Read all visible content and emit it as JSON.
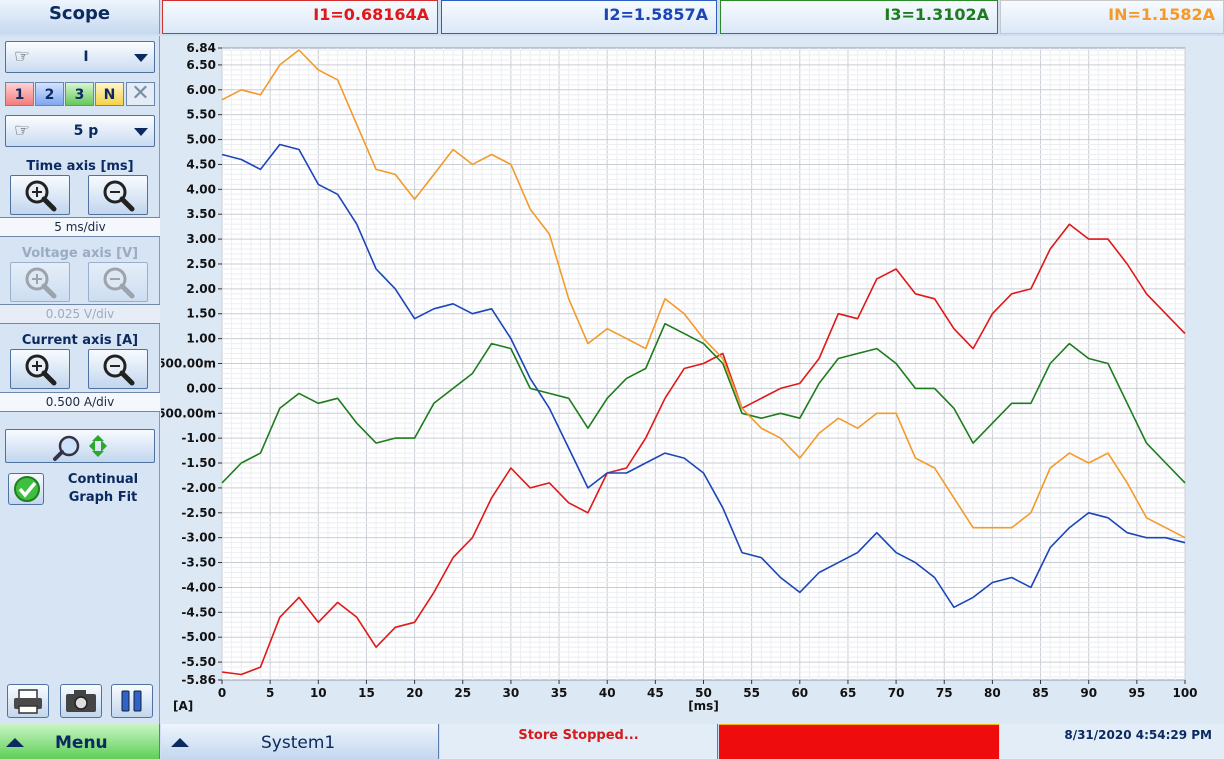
{
  "header": {
    "title": "Scope",
    "meters": [
      {
        "label": "I1=0.68164A",
        "color": "#e01818"
      },
      {
        "label": "I2=1.5857A",
        "color": "#1c46b8"
      },
      {
        "label": "I3=1.3102A",
        "color": "#1e7c1e"
      },
      {
        "label": "IN=1.1582A",
        "color": "#f39a2a"
      }
    ]
  },
  "sidebar": {
    "signal_select": "I",
    "phases": [
      "1",
      "2",
      "3",
      "N"
    ],
    "period_select": "5 p",
    "time_axis": {
      "label": "Time axis [ms]",
      "readout": "5 ms/div"
    },
    "voltage_axis": {
      "label": "Voltage axis [V]",
      "readout": "0.025 V/div"
    },
    "current_axis": {
      "label": "Current axis [A]",
      "readout": "0.500 A/div"
    },
    "continual_fit_label": "Continual Graph Fit",
    "continual_fit_checked": true,
    "icons": [
      "hand-pointer-icon",
      "zoom-in-icon",
      "zoom-out-icon",
      "auto-fit-icon",
      "checkmark-icon",
      "printer-icon",
      "camera-icon",
      "pause-icon"
    ]
  },
  "chart_data": {
    "type": "line",
    "xlabel": "[ms]",
    "ylabel": "[A]",
    "xlim": [
      0,
      100
    ],
    "ylim": [
      -5.86,
      6.84
    ],
    "x_ticks": [
      0,
      5,
      10,
      15,
      20,
      25,
      30,
      35,
      40,
      45,
      50,
      55,
      60,
      65,
      70,
      75,
      80,
      85,
      90,
      95,
      100
    ],
    "y_ticks": [
      {
        "v": 6.84,
        "t": "6.84"
      },
      {
        "v": 6.5,
        "t": "6.50"
      },
      {
        "v": 6.0,
        "t": "6.00"
      },
      {
        "v": 5.5,
        "t": "5.50"
      },
      {
        "v": 5.0,
        "t": "5.00"
      },
      {
        "v": 4.5,
        "t": "4.50"
      },
      {
        "v": 4.0,
        "t": "4.00"
      },
      {
        "v": 3.5,
        "t": "3.50"
      },
      {
        "v": 3.0,
        "t": "3.00"
      },
      {
        "v": 2.5,
        "t": "2.50"
      },
      {
        "v": 2.0,
        "t": "2.00"
      },
      {
        "v": 1.5,
        "t": "1.50"
      },
      {
        "v": 1.0,
        "t": "1.00"
      },
      {
        "v": 0.5,
        "t": "500.00m"
      },
      {
        "v": 0.0,
        "t": "0.00"
      },
      {
        "v": -0.5,
        "t": "500.00m"
      },
      {
        "v": -1.0,
        "t": "-1.00"
      },
      {
        "v": -1.5,
        "t": "-1.50"
      },
      {
        "v": -2.0,
        "t": "-2.00"
      },
      {
        "v": -2.5,
        "t": "-2.50"
      },
      {
        "v": -3.0,
        "t": "-3.00"
      },
      {
        "v": -3.5,
        "t": "-3.50"
      },
      {
        "v": -4.0,
        "t": "-4.00"
      },
      {
        "v": -4.5,
        "t": "-4.50"
      },
      {
        "v": -5.0,
        "t": "-5.00"
      },
      {
        "v": -5.5,
        "t": "-5.50"
      },
      {
        "v": -5.86,
        "t": "-5.86"
      }
    ],
    "grid": true,
    "series": [
      {
        "name": "I1",
        "color": "#e01818",
        "x": [
          0,
          2,
          4,
          6,
          8,
          10,
          12,
          14,
          16,
          18,
          20,
          22,
          24,
          26,
          28,
          30,
          32,
          34,
          36,
          38,
          40,
          42,
          44,
          46,
          48,
          50,
          52,
          54,
          56,
          58,
          60,
          62,
          64,
          66,
          68,
          70,
          72,
          74,
          76,
          78,
          80,
          82,
          84,
          86,
          88,
          90,
          92,
          94,
          96,
          98,
          100
        ],
        "y": [
          -5.7,
          -5.75,
          -5.6,
          -4.6,
          -4.2,
          -4.7,
          -4.3,
          -4.6,
          -5.2,
          -4.8,
          -4.7,
          -4.1,
          -3.4,
          -3.0,
          -2.2,
          -1.6,
          -2.0,
          -1.9,
          -2.3,
          -2.5,
          -1.7,
          -1.6,
          -1.0,
          -0.2,
          0.4,
          0.5,
          0.7,
          -0.4,
          -0.2,
          0.0,
          0.1,
          0.6,
          1.5,
          1.4,
          2.2,
          2.4,
          1.9,
          1.8,
          1.2,
          0.8,
          1.5,
          1.9,
          2.0,
          2.8,
          3.3,
          3.0,
          3.0,
          2.5,
          1.9,
          1.5,
          1.1
        ]
      },
      {
        "name": "I2",
        "color": "#1c46b8",
        "x": [
          0,
          2,
          4,
          6,
          8,
          10,
          12,
          14,
          16,
          18,
          20,
          22,
          24,
          26,
          28,
          30,
          32,
          34,
          36,
          38,
          40,
          42,
          44,
          46,
          48,
          50,
          52,
          54,
          56,
          58,
          60,
          62,
          64,
          66,
          68,
          70,
          72,
          74,
          76,
          78,
          80,
          82,
          84,
          86,
          88,
          90,
          92,
          94,
          96,
          98,
          100
        ],
        "y": [
          4.7,
          4.6,
          4.4,
          4.9,
          4.8,
          4.1,
          3.9,
          3.3,
          2.4,
          2.0,
          1.4,
          1.6,
          1.7,
          1.5,
          1.6,
          1.0,
          0.2,
          -0.4,
          -1.2,
          -2.0,
          -1.7,
          -1.7,
          -1.5,
          -1.3,
          -1.4,
          -1.7,
          -2.4,
          -3.3,
          -3.4,
          -3.8,
          -4.1,
          -3.7,
          -3.5,
          -3.3,
          -2.9,
          -3.3,
          -3.5,
          -3.8,
          -4.4,
          -4.2,
          -3.9,
          -3.8,
          -4.0,
          -3.2,
          -2.8,
          -2.5,
          -2.6,
          -2.9,
          -3.0,
          -3.0,
          -3.1
        ]
      },
      {
        "name": "I3",
        "color": "#1e7c1e",
        "x": [
          0,
          2,
          4,
          6,
          8,
          10,
          12,
          14,
          16,
          18,
          20,
          22,
          24,
          26,
          28,
          30,
          32,
          34,
          36,
          38,
          40,
          42,
          44,
          46,
          48,
          50,
          52,
          54,
          56,
          58,
          60,
          62,
          64,
          66,
          68,
          70,
          72,
          74,
          76,
          78,
          80,
          82,
          84,
          86,
          88,
          90,
          92,
          94,
          96,
          98,
          100
        ],
        "y": [
          -1.9,
          -1.5,
          -1.3,
          -0.4,
          -0.1,
          -0.3,
          -0.2,
          -0.7,
          -1.1,
          -1.0,
          -1.0,
          -0.3,
          0.0,
          0.3,
          0.9,
          0.8,
          0.0,
          -0.1,
          -0.2,
          -0.8,
          -0.2,
          0.2,
          0.4,
          1.3,
          1.1,
          0.9,
          0.5,
          -0.5,
          -0.6,
          -0.5,
          -0.6,
          0.1,
          0.6,
          0.7,
          0.8,
          0.5,
          0.0,
          0.0,
          -0.4,
          -1.1,
          -0.7,
          -0.3,
          -0.3,
          0.5,
          0.9,
          0.6,
          0.5,
          -0.3,
          -1.1,
          -1.5,
          -1.9
        ]
      },
      {
        "name": "IN",
        "color": "#f39a2a",
        "x": [
          0,
          2,
          4,
          6,
          8,
          10,
          12,
          14,
          16,
          18,
          20,
          22,
          24,
          26,
          28,
          30,
          32,
          34,
          36,
          38,
          40,
          42,
          44,
          46,
          48,
          50,
          52,
          54,
          56,
          58,
          60,
          62,
          64,
          66,
          68,
          70,
          72,
          74,
          76,
          78,
          80,
          82,
          84,
          86,
          88,
          90,
          92,
          94,
          96,
          98,
          100
        ],
        "y": [
          5.8,
          6.0,
          5.9,
          6.5,
          6.8,
          6.4,
          6.2,
          5.3,
          4.4,
          4.3,
          3.8,
          4.3,
          4.8,
          4.5,
          4.7,
          4.5,
          3.6,
          3.1,
          1.8,
          0.9,
          1.2,
          1.0,
          0.8,
          1.8,
          1.5,
          1.0,
          0.6,
          -0.4,
          -0.8,
          -1.0,
          -1.4,
          -0.9,
          -0.6,
          -0.8,
          -0.5,
          -0.5,
          -1.4,
          -1.6,
          -2.2,
          -2.8,
          -2.8,
          -2.8,
          -2.5,
          -1.6,
          -1.3,
          -1.5,
          -1.3,
          -1.9,
          -2.6,
          -2.8,
          -3.0
        ]
      }
    ]
  },
  "footer": {
    "menu_label": "Menu",
    "system_label": "System1",
    "status": "Store Stopped...",
    "status_color": "#ee0c0c",
    "datetime": "8/31/2020 4:54:29 PM"
  }
}
